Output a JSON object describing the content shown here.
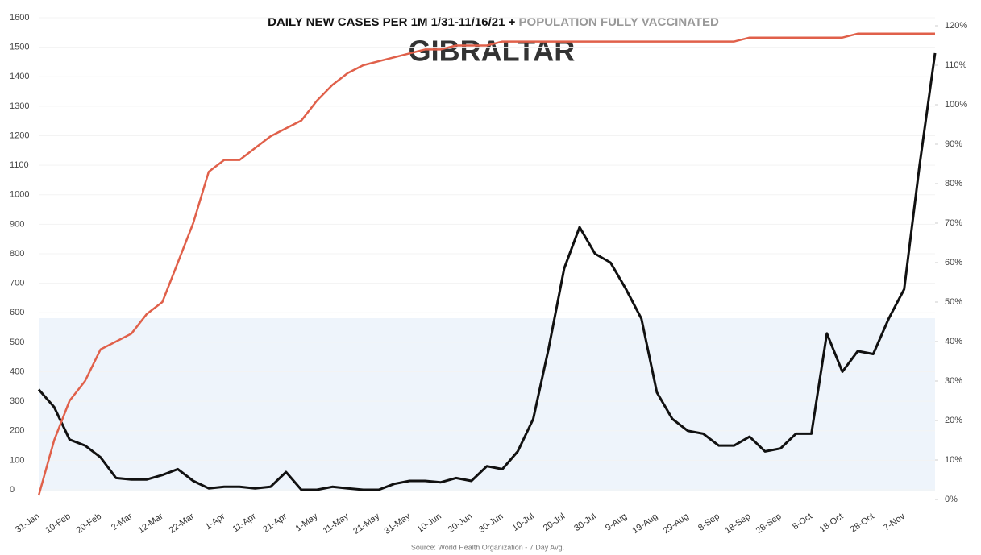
{
  "chart_data": {
    "type": "line",
    "title": "DAILY NEW CASES PER 1M 1/31-11/16/21 +",
    "title_2": "POPULATION FULLY VACCINATED",
    "subtitle": "GIBRALTAR",
    "source": "Source: World Health Organization - 7 Day Avg.",
    "categories": [
      "31-Jan",
      null,
      "10-Feb",
      null,
      "20-Feb",
      null,
      "2-Mar",
      null,
      "12-Mar",
      null,
      "22-Mar",
      null,
      "1-Apr",
      null,
      "11-Apr",
      null,
      "21-Apr",
      null,
      "1-May",
      null,
      "11-May",
      null,
      "21-May",
      null,
      "31-May",
      null,
      "10-Jun",
      null,
      "20-Jun",
      null,
      "30-Jun",
      null,
      "10-Jul",
      null,
      "20-Jul",
      null,
      "30-Jul",
      null,
      "9-Aug",
      null,
      "19-Aug",
      null,
      "29-Aug",
      null,
      "8-Sep",
      null,
      "18-Sep",
      null,
      "28-Sep",
      null,
      "8-Oct",
      null,
      "18-Oct",
      null,
      "28-Oct",
      null,
      "7-Nov",
      null,
      null
    ],
    "series": [
      {
        "name": "Daily new cases per 1M",
        "color": "#111111",
        "axis": "y",
        "values": [
          340,
          280,
          170,
          150,
          110,
          40,
          35,
          35,
          50,
          70,
          30,
          5,
          10,
          10,
          5,
          10,
          60,
          0,
          0,
          10,
          5,
          0,
          0,
          20,
          30,
          30,
          25,
          40,
          30,
          80,
          70,
          130,
          240,
          480,
          750,
          890,
          800,
          770,
          680,
          580,
          330,
          240,
          200,
          190,
          150,
          150,
          180,
          130,
          140,
          190,
          190,
          530,
          400,
          470,
          460,
          580,
          680,
          1100,
          1480
        ]
      },
      {
        "name": "Population fully vaccinated",
        "color": "#e0604a",
        "axis": "y2",
        "values": [
          1,
          15,
          25,
          30,
          38,
          40,
          42,
          47,
          50,
          60,
          70,
          83,
          86,
          86,
          89,
          92,
          94,
          96,
          101,
          105,
          108,
          110,
          111,
          112,
          113,
          114,
          114,
          115,
          115,
          115,
          116,
          116,
          116,
          116,
          116,
          116,
          116,
          116,
          116,
          116,
          116,
          116,
          116,
          116,
          116,
          116,
          117,
          117,
          117,
          117,
          117,
          117,
          117,
          118,
          118,
          118,
          118,
          118,
          118
        ]
      }
    ],
    "ylim": [
      0,
      1600
    ],
    "yticks": [
      0,
      100,
      200,
      300,
      400,
      500,
      600,
      700,
      800,
      900,
      1000,
      1100,
      1200,
      1300,
      1400,
      1500,
      1600
    ],
    "y2lim": [
      0,
      120
    ],
    "y2ticks": [
      {
        "value": 0,
        "label": "0%"
      },
      {
        "value": 10,
        "label": "10%"
      },
      {
        "value": 20,
        "label": "20%"
      },
      {
        "value": 30,
        "label": "30%"
      },
      {
        "value": 40,
        "label": "40%"
      },
      {
        "value": 50,
        "label": "50%"
      },
      {
        "value": 60,
        "label": "60%"
      },
      {
        "value": 70,
        "label": "70%"
      },
      {
        "value": 80,
        "label": "80%"
      },
      {
        "value": 90,
        "label": "90%"
      },
      {
        "value": 100,
        "label": "100%"
      },
      {
        "value": 110,
        "label": "110%"
      },
      {
        "value": 120,
        "label": "120%"
      }
    ]
  }
}
